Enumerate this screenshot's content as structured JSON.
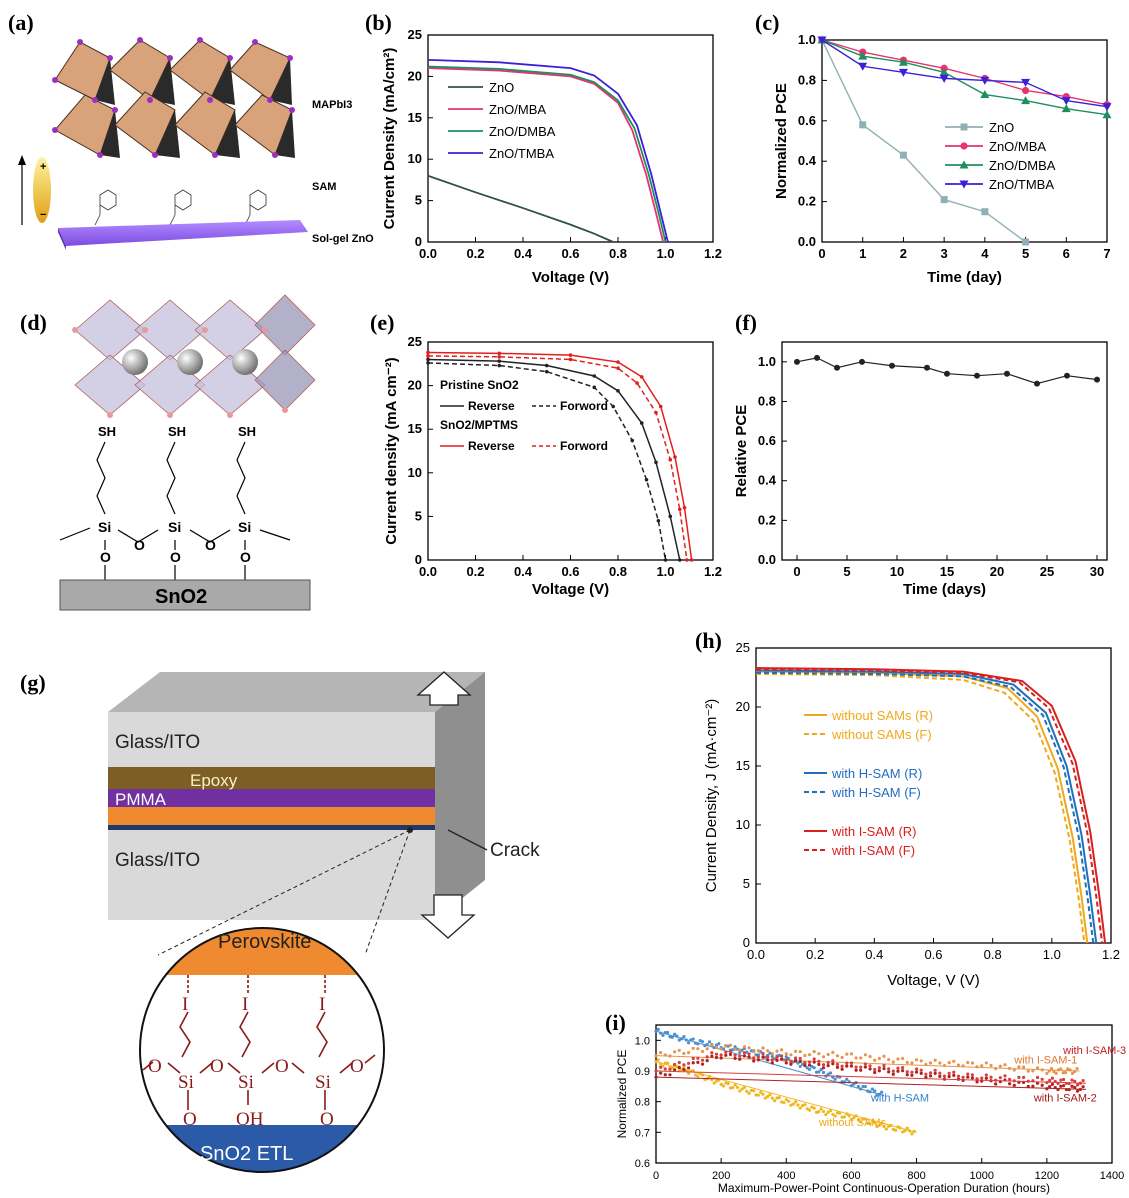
{
  "panel_labels": {
    "a": "(a)",
    "b": "(b)",
    "c": "(c)",
    "d": "(d)",
    "e": "(e)",
    "f": "(f)",
    "g": "(g)",
    "h": "(h)",
    "i": "(i)"
  },
  "schematic_a": {
    "mapbi3": "MAPbI3",
    "sam": "SAM",
    "zno": "Sol-gel ZnO",
    "plus": "+",
    "minus": "−"
  },
  "schematic_d": {
    "sh": "SH",
    "si": "Si",
    "o": "O",
    "sno2": "SnO2"
  },
  "schematic_g": {
    "glass_ito_top": "Glass/ITO",
    "epoxy": "Epoxy",
    "pmma": "PMMA",
    "glass_ito_bottom": "Glass/ITO",
    "crack": "Crack",
    "perovskite": "Perovskite",
    "etl": "SnO2 ETL",
    "iodine": "I",
    "si": "Si",
    "o": "O",
    "oh": "OH"
  },
  "chart_data": [
    {
      "panel": "b",
      "type": "line",
      "xlabel": "Voltage (V)",
      "ylabel": "Current Density (mA/cm²)",
      "xlim": [
        0,
        1.2
      ],
      "ylim": [
        0,
        25
      ],
      "xticks": [
        "0.0",
        "0.2",
        "0.4",
        "0.6",
        "0.8",
        "1.0",
        "1.2"
      ],
      "yticks": [
        "0",
        "5",
        "10",
        "15",
        "20",
        "25"
      ],
      "legend_position": "center-left",
      "series": [
        {
          "name": "ZnO",
          "color": "#2f4f4f",
          "x": [
            0,
            0.2,
            0.4,
            0.6,
            0.7,
            0.78
          ],
          "y": [
            8,
            6,
            4.1,
            2.1,
            1.0,
            0
          ]
        },
        {
          "name": "ZnO/MBA",
          "color": "#e8336e",
          "x": [
            0,
            0.3,
            0.6,
            0.7,
            0.8,
            0.86,
            0.92,
            0.96,
            0.99
          ],
          "y": [
            21,
            20.7,
            20,
            19.1,
            16.8,
            13.5,
            8,
            3.5,
            0
          ]
        },
        {
          "name": "ZnO/DMBA",
          "color": "#1f8f5f",
          "x": [
            0,
            0.3,
            0.6,
            0.7,
            0.8,
            0.87,
            0.93,
            0.97,
            1.0
          ],
          "y": [
            21.2,
            20.9,
            20.2,
            19.3,
            17.1,
            13.7,
            8.1,
            3.6,
            0
          ]
        },
        {
          "name": "ZnO/TMBA",
          "color": "#3a20d8",
          "x": [
            0,
            0.3,
            0.6,
            0.7,
            0.8,
            0.88,
            0.94,
            0.98,
            1.01
          ],
          "y": [
            22,
            21.7,
            21,
            20.1,
            17.9,
            14.1,
            8.2,
            3.5,
            0
          ]
        }
      ]
    },
    {
      "panel": "c",
      "type": "line",
      "xlabel": "Time (day)",
      "ylabel": "Normalized PCE",
      "xlim": [
        0,
        7
      ],
      "ylim": [
        0,
        1.0
      ],
      "xticks": [
        "0",
        "1",
        "2",
        "3",
        "4",
        "5",
        "6",
        "7"
      ],
      "yticks": [
        "0.0",
        "0.2",
        "0.4",
        "0.6",
        "0.8",
        "1.0"
      ],
      "legend_position": "bottom-right",
      "series": [
        {
          "name": "ZnO",
          "color": "#8fb0b4",
          "marker": "square",
          "x": [
            0,
            1,
            2,
            3,
            4,
            5
          ],
          "y": [
            1.0,
            0.58,
            0.43,
            0.21,
            0.15,
            0
          ]
        },
        {
          "name": "ZnO/MBA",
          "color": "#e8336e",
          "marker": "circle",
          "x": [
            0,
            1,
            2,
            3,
            4,
            5,
            6,
            7
          ],
          "y": [
            1.0,
            0.94,
            0.9,
            0.86,
            0.81,
            0.75,
            0.72,
            0.68
          ]
        },
        {
          "name": "ZnO/DMBA",
          "color": "#1f8f5f",
          "marker": "triangle",
          "x": [
            0,
            1,
            2,
            3,
            4,
            5,
            6,
            7
          ],
          "y": [
            1.0,
            0.92,
            0.89,
            0.84,
            0.73,
            0.7,
            0.66,
            0.63
          ]
        },
        {
          "name": "ZnO/TMBA",
          "color": "#3a20d8",
          "marker": "triangle-down",
          "x": [
            0,
            1,
            2,
            3,
            4,
            5,
            6,
            7
          ],
          "y": [
            1.0,
            0.87,
            0.84,
            0.81,
            0.8,
            0.79,
            0.7,
            0.67
          ]
        }
      ]
    },
    {
      "panel": "e",
      "type": "line",
      "xlabel": "Voltage (V)",
      "ylabel": "Current density (mA cm⁻²)",
      "xlim": [
        0,
        1.2
      ],
      "ylim": [
        0,
        25
      ],
      "xticks": [
        "0.0",
        "0.2",
        "0.4",
        "0.6",
        "0.8",
        "1.0",
        "1.2"
      ],
      "yticks": [
        "0",
        "5",
        "10",
        "15",
        "20",
        "25"
      ],
      "legend_position": "center-left",
      "legend_groups": [
        "Pristine SnO2",
        "SnO2/MPTMS"
      ],
      "series": [
        {
          "name": "Reverse",
          "group": "Pristine SnO2",
          "color": "#222222",
          "dash": false,
          "x": [
            0,
            0.3,
            0.5,
            0.7,
            0.8,
            0.9,
            0.96,
            1.02,
            1.06
          ],
          "y": [
            23,
            22.8,
            22.3,
            21.1,
            19.4,
            15.7,
            11.2,
            5,
            0
          ]
        },
        {
          "name": "Forword",
          "group": "Pristine SnO2",
          "color": "#222222",
          "dash": true,
          "x": [
            0,
            0.3,
            0.5,
            0.7,
            0.78,
            0.86,
            0.92,
            0.97,
            1.0
          ],
          "y": [
            22.6,
            22.3,
            21.6,
            19.8,
            17.6,
            13.7,
            9.2,
            4.5,
            0
          ]
        },
        {
          "name": "Reverse",
          "group": "SnO2/MPTMS",
          "color": "#e0201c",
          "dash": false,
          "x": [
            0,
            0.3,
            0.6,
            0.8,
            0.9,
            0.98,
            1.04,
            1.08,
            1.11
          ],
          "y": [
            23.8,
            23.7,
            23.5,
            22.7,
            21,
            17.6,
            11.8,
            6,
            0
          ]
        },
        {
          "name": "Forword",
          "group": "SnO2/MPTMS",
          "color": "#e0201c",
          "dash": true,
          "x": [
            0,
            0.3,
            0.6,
            0.8,
            0.88,
            0.96,
            1.02,
            1.06,
            1.09
          ],
          "y": [
            23.4,
            23.3,
            23,
            22,
            20.3,
            16.9,
            11.5,
            5.8,
            0
          ]
        }
      ]
    },
    {
      "panel": "f",
      "type": "line",
      "xlabel": "Time (days)",
      "ylabel": "Relative PCE",
      "xlim": [
        -1.5,
        31
      ],
      "ylim": [
        0,
        1.1
      ],
      "xticks": [
        "0",
        "5",
        "10",
        "15",
        "20",
        "25",
        "30"
      ],
      "yticks": [
        "0.0",
        "0.2",
        "0.4",
        "0.6",
        "0.8",
        "1.0"
      ],
      "series": [
        {
          "name": "",
          "color": "#222222",
          "x": [
            0,
            2,
            4,
            6.5,
            9.5,
            13,
            15,
            18,
            21,
            24,
            27,
            30
          ],
          "y": [
            1.0,
            1.02,
            0.97,
            1.0,
            0.98,
            0.97,
            0.94,
            0.93,
            0.94,
            0.89,
            0.93,
            0.91
          ]
        }
      ]
    },
    {
      "panel": "h",
      "type": "line",
      "xlabel": "Voltage, V (V)",
      "ylabel": "Current Density, J (mA·cm⁻²)",
      "xlim": [
        0,
        1.2
      ],
      "ylim": [
        0,
        25
      ],
      "xticks": [
        "0.0",
        "0.2",
        "0.4",
        "0.6",
        "0.8",
        "1.0",
        "1.2"
      ],
      "yticks": [
        "0",
        "5",
        "10",
        "15",
        "20",
        "25"
      ],
      "legend_position": "center-left",
      "series": [
        {
          "name": "without SAMs (R)",
          "color": "#f0a81a",
          "dash": false,
          "x": [
            0,
            0.4,
            0.7,
            0.85,
            0.95,
            1.02,
            1.07,
            1.1,
            1.12
          ],
          "y": [
            23,
            22.9,
            22.6,
            21.6,
            19.2,
            14.8,
            9,
            4,
            0
          ]
        },
        {
          "name": "without SAMs (F)",
          "color": "#f0a81a",
          "dash": true,
          "x": [
            0,
            0.4,
            0.7,
            0.84,
            0.94,
            1.01,
            1.06,
            1.09,
            1.11
          ],
          "y": [
            22.8,
            22.7,
            22.3,
            21.2,
            18.8,
            14.4,
            8.8,
            3.9,
            0
          ]
        },
        {
          "name": "with H-SAM (R)",
          "color": "#1f6fbf",
          "dash": false,
          "x": [
            0,
            0.4,
            0.7,
            0.87,
            0.98,
            1.05,
            1.1,
            1.13,
            1.15
          ],
          "y": [
            23.1,
            23,
            22.8,
            21.9,
            19.5,
            15,
            9.2,
            4,
            0
          ]
        },
        {
          "name": "with H-SAM (F)",
          "color": "#1f6fbf",
          "dash": true,
          "x": [
            0,
            0.4,
            0.7,
            0.86,
            0.97,
            1.04,
            1.09,
            1.12,
            1.14
          ],
          "y": [
            22.9,
            22.8,
            22.6,
            21.7,
            19.3,
            14.9,
            9.1,
            4,
            0
          ]
        },
        {
          "name": "with I-SAM (R)",
          "color": "#d82020",
          "dash": false,
          "x": [
            0,
            0.4,
            0.7,
            0.9,
            1.0,
            1.08,
            1.13,
            1.16,
            1.18
          ],
          "y": [
            23.3,
            23.2,
            23,
            22.2,
            20.1,
            15.4,
            9.4,
            4.1,
            0
          ]
        },
        {
          "name": "with I-SAM (F)",
          "color": "#d82020",
          "dash": true,
          "x": [
            0,
            0.4,
            0.7,
            0.89,
            0.99,
            1.07,
            1.12,
            1.15,
            1.17
          ],
          "y": [
            23.2,
            23.1,
            22.9,
            22.1,
            19.9,
            15.2,
            9.3,
            4,
            0
          ]
        }
      ]
    },
    {
      "panel": "i",
      "type": "scatter",
      "xlabel": "Maximum-Power-Point Continuous-Operation Duration (hours)",
      "ylabel": "Normalized PCE",
      "xlim": [
        0,
        1400
      ],
      "ylim": [
        0.6,
        1.05
      ],
      "xticks": [
        "0",
        "200",
        "400",
        "600",
        "800",
        "1000",
        "1200",
        "1400"
      ],
      "yticks": [
        "0.6",
        "0.7",
        "0.8",
        "0.9",
        "1.0"
      ],
      "series": [
        {
          "name": "without SAMs",
          "color": "#f0b820",
          "x": [
            0,
            100,
            200,
            300,
            400,
            500,
            600,
            700,
            800
          ],
          "y": [
            0.93,
            0.9,
            0.86,
            0.83,
            0.8,
            0.77,
            0.75,
            0.72,
            0.7
          ]
        },
        {
          "name": "with H-SAM",
          "color": "#4a90d0",
          "x": [
            0,
            100,
            200,
            300,
            400,
            500,
            600,
            700
          ],
          "y": [
            1.03,
            1.0,
            0.98,
            0.96,
            0.94,
            0.9,
            0.86,
            0.82
          ]
        },
        {
          "name": "with I-SAM-1",
          "color": "#e8944a",
          "x": [
            0,
            200,
            400,
            600,
            800,
            1000,
            1200,
            1300
          ],
          "y": [
            0.95,
            0.98,
            0.96,
            0.95,
            0.93,
            0.92,
            0.9,
            0.9
          ]
        },
        {
          "name": "with I-SAM-2",
          "color": "#b02020",
          "x": [
            0,
            200,
            400,
            600,
            800,
            1000,
            1200,
            1320
          ],
          "y": [
            0.88,
            0.95,
            0.93,
            0.91,
            0.89,
            0.87,
            0.85,
            0.84
          ]
        },
        {
          "name": "with I-SAM-3",
          "color": "#d84040",
          "x": [
            0,
            200,
            400,
            600,
            800,
            1000,
            1200,
            1320
          ],
          "y": [
            0.9,
            0.96,
            0.94,
            0.92,
            0.9,
            0.88,
            0.87,
            0.86
          ]
        }
      ]
    }
  ]
}
